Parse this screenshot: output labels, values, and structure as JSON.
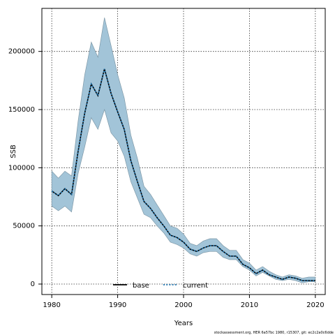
{
  "chart_data": {
    "type": "line",
    "xlabel": "Years",
    "ylabel": "SSB",
    "xlim": [
      1978.5,
      2021.5
    ],
    "ylim": [
      -9000,
      237000
    ],
    "xticks": [
      1980,
      1990,
      2000,
      2010,
      2020
    ],
    "yticks": [
      0,
      50000,
      100000,
      150000,
      200000
    ],
    "grid": true,
    "legend_position": "bottom-center",
    "x": [
      1980,
      1981,
      1982,
      1983,
      1984,
      1985,
      1986,
      1987,
      1988,
      1989,
      1990,
      1991,
      1992,
      1993,
      1994,
      1995,
      1996,
      1997,
      1998,
      1999,
      2000,
      2001,
      2002,
      2003,
      2004,
      2005,
      2006,
      2007,
      2008,
      2009,
      2010,
      2011,
      2012,
      2013,
      2014,
      2015,
      2016,
      2017,
      2018,
      2019,
      2020
    ],
    "band": {
      "upper": [
        97000,
        91000,
        97000,
        93000,
        140000,
        180000,
        208000,
        195000,
        229000,
        205000,
        180000,
        160000,
        128000,
        108000,
        84000,
        77000,
        68000,
        59000,
        50000,
        48000,
        43000,
        35000,
        33000,
        37000,
        39000,
        39000,
        33000,
        29000,
        29000,
        21000,
        18000,
        12000,
        15000,
        11000,
        8000,
        6000,
        8000,
        7000,
        5000,
        6000,
        6000
      ],
      "lower": [
        67000,
        63000,
        67000,
        62000,
        95000,
        118000,
        143000,
        133000,
        150000,
        130000,
        123000,
        110000,
        88000,
        74000,
        60000,
        57000,
        50000,
        44000,
        36000,
        34000,
        31000,
        26000,
        24000,
        27000,
        28000,
        28000,
        23000,
        21000,
        21000,
        15000,
        12000,
        7000,
        10000,
        7000,
        4000,
        3000,
        4000,
        3000,
        1000,
        2000,
        2000
      ],
      "color": "#a2c4d8"
    },
    "series": [
      {
        "name": "base",
        "values": [
          80000,
          76000,
          82000,
          77000,
          114000,
          147000,
          172000,
          162000,
          185000,
          164000,
          148000,
          133000,
          106000,
          88000,
          71000,
          65000,
          57000,
          50000,
          42000,
          40000,
          36000,
          30000,
          28000,
          31000,
          33000,
          33000,
          28000,
          24000,
          24000,
          17000,
          14000,
          9000,
          12000,
          8000,
          6000,
          4000,
          6000,
          5000,
          3000,
          3000,
          3000
        ],
        "color": "#000000",
        "style": "solid"
      },
      {
        "name": "current",
        "values": [
          80000,
          76000,
          82000,
          77000,
          114000,
          147000,
          172000,
          162000,
          185000,
          164000,
          148000,
          133000,
          106000,
          88000,
          71000,
          65000,
          57000,
          50000,
          42000,
          40000,
          36000,
          30000,
          28000,
          31000,
          33000,
          33000,
          28000,
          24000,
          24000,
          17000,
          14000,
          9000,
          12000,
          8000,
          6000,
          4000,
          6000,
          5000,
          3000,
          3000,
          3000
        ],
        "color": "#1f77b4",
        "style": "dotted"
      }
    ],
    "footnote": "stockassessment.org, HER 6a57bc 1980, r15307, git: ec2c2a0c6dde"
  }
}
